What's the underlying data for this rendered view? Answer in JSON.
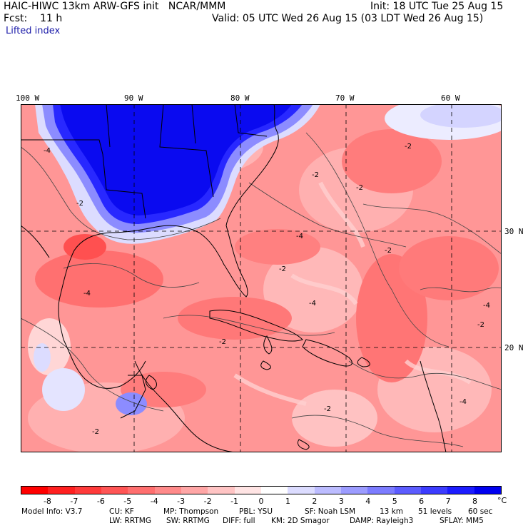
{
  "header": {
    "title": "HAIC-HIWC 13km ARW-GFS init   NCAR/MMM",
    "fcst": "Fcst:    11 h",
    "init": "Init: 18 UTC Tue 25 Aug 15",
    "valid": "Valid: 05 UTC Wed 26 Aug 15 (03 LDT Wed 26 Aug 15)",
    "field": "Lifted index"
  },
  "map": {
    "lon_labels": [
      "100 W",
      "90 W",
      "80 W",
      "70 W",
      "60 W"
    ],
    "lat_labels": [
      "30 N",
      "20 N"
    ],
    "contour_labels": [
      "-4",
      "-2",
      "-4",
      "-2",
      "-4",
      "-2",
      "-2",
      "-2",
      "-2",
      "-4",
      "-2",
      "-4",
      "-2",
      "-2",
      "-2",
      "-4"
    ]
  },
  "colorbar": {
    "labels": [
      "-8",
      "-7",
      "-6",
      "-5",
      "-4",
      "-3",
      "-2",
      "-1",
      "0",
      "1",
      "2",
      "3",
      "4",
      "5",
      "6",
      "7",
      "8"
    ],
    "unit": "°C",
    "colors": [
      "#ff0000",
      "#ff2020",
      "#ff3a3a",
      "#ff5555",
      "#ff6f6f",
      "#ff8a8a",
      "#ffa6a6",
      "#ffc4c4",
      "#ffe4e4",
      "#ffffff",
      "#dcdcff",
      "#bcbcff",
      "#9c9cff",
      "#7c7cff",
      "#5c5cff",
      "#3c3cff",
      "#1c1cff",
      "#0000f0"
    ]
  },
  "footer": {
    "line1": [
      "Model Info: V3.7",
      "CU: KF",
      "MP: Thompson",
      "PBL: YSU",
      "SF: Noah LSM",
      "13 km",
      "51 levels",
      "60 sec"
    ],
    "line2": [
      "LW: RRTMG",
      "SW: RRTMG",
      "DIFF: full",
      "KM: 2D Smagor",
      "DAMP: Rayleigh3",
      "SFLAY: MM5"
    ]
  }
}
